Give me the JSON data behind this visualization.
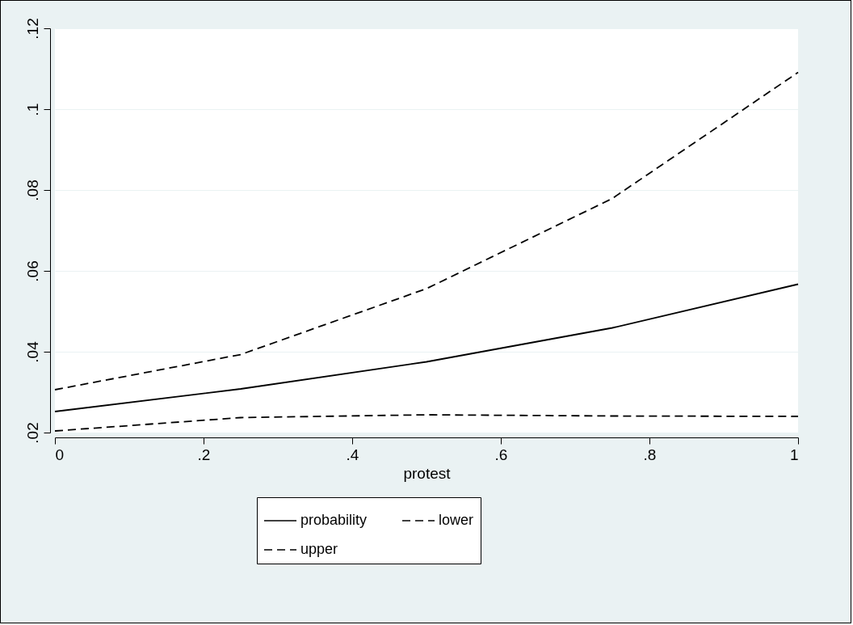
{
  "chart_data": {
    "type": "line",
    "xlabel": "protest",
    "x": [
      0,
      0.25,
      0.5,
      0.75,
      1
    ],
    "series": [
      {
        "name": "probability",
        "color": "#000000",
        "line_style": "solid",
        "values": [
          0.0252,
          0.0308,
          0.0375,
          0.0459,
          0.0567
        ]
      },
      {
        "name": "lower",
        "color": "#000000",
        "line_style": "dashed",
        "values": [
          0.0204,
          0.0237,
          0.0244,
          0.0241,
          0.024
        ]
      },
      {
        "name": "upper",
        "color": "#000000",
        "line_style": "dashed",
        "values": [
          0.0306,
          0.0393,
          0.0556,
          0.0779,
          0.1091
        ]
      }
    ],
    "xlim": [
      0,
      1
    ],
    "ylim": [
      0.02,
      0.12
    ],
    "xticks": [
      0,
      {
        "value": 0.2,
        "label": ".2"
      },
      {
        "value": 0.4,
        "label": ".4"
      },
      {
        "value": 0.6,
        "label": ".6"
      },
      {
        "value": 0.8,
        "label": ".8"
      },
      1
    ],
    "yticks": [
      {
        "value": 0.02,
        "label": ".02"
      },
      {
        "value": 0.04,
        "label": ".04"
      },
      {
        "value": 0.06,
        "label": ".06"
      },
      {
        "value": 0.08,
        "label": ".08"
      },
      {
        "value": 0.1,
        "label": ".1"
      },
      {
        "value": 0.12,
        "label": ".12"
      }
    ],
    "grid": "y",
    "legend": "bottom"
  }
}
